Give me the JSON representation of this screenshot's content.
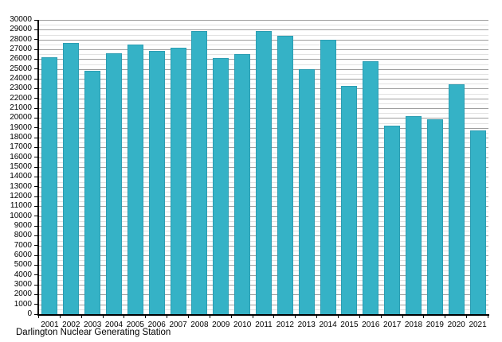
{
  "chart_data": {
    "type": "bar",
    "caption": "Darlington Nuclear Generating Station",
    "title": "",
    "xlabel": "",
    "ylabel": "",
    "categories": [
      "2001",
      "2002",
      "2003",
      "2004",
      "2005",
      "2006",
      "2007",
      "2008",
      "2009",
      "2010",
      "2011",
      "2012",
      "2013",
      "2014",
      "2015",
      "2016",
      "2017",
      "2018",
      "2019",
      "2020",
      "2021"
    ],
    "values": [
      26150,
      27650,
      24800,
      26600,
      27500,
      26870,
      27150,
      28870,
      26100,
      26550,
      28900,
      28400,
      25000,
      27950,
      23300,
      25750,
      19250,
      20150,
      19850,
      23450,
      18700
    ],
    "ylim": [
      0,
      30000
    ],
    "y_major_step": 1000,
    "y_minor_step": 500,
    "y_tick_labels": [
      "0",
      "1000",
      "2000",
      "3000",
      "4000",
      "5000",
      "6000",
      "7000",
      "8000",
      "9000",
      "10000",
      "11000",
      "12000",
      "13000",
      "14000",
      "15000",
      "16000",
      "17000",
      "18000",
      "19000",
      "20000",
      "21000",
      "22000",
      "23000",
      "24000",
      "25000",
      "26000",
      "27000",
      "28000",
      "29000",
      "30000"
    ],
    "grid": "horizontal, major every 1000 with minor every 500",
    "legend_position": "none",
    "colors": {
      "bar_fill": "#35b2c6",
      "bar_edge": "#2b9db2",
      "axis": "#000000",
      "grid_major": "#9e9e9e",
      "grid_minor": "#e2e2e2",
      "background": "#ffffff",
      "text": "#000000"
    }
  }
}
